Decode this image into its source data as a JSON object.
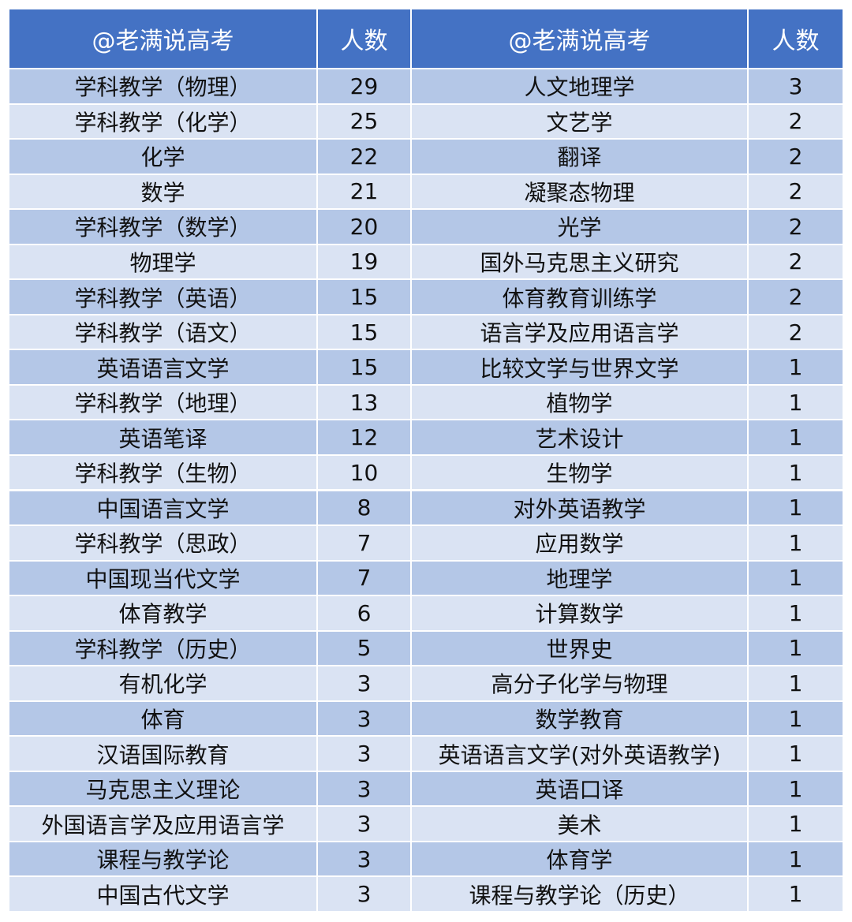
{
  "table": {
    "header": [
      "@老满说高考",
      "人数",
      "@老满说高考",
      "人数"
    ],
    "rows": [
      [
        "学科教学（物理）",
        29,
        "人文地理学",
        3
      ],
      [
        "学科教学（化学）",
        25,
        "文艺学",
        2
      ],
      [
        "化学",
        22,
        "翻译",
        2
      ],
      [
        "数学",
        21,
        "凝聚态物理",
        2
      ],
      [
        "学科教学（数学）",
        20,
        "光学",
        2
      ],
      [
        "物理学",
        19,
        "国外马克思主义研究",
        2
      ],
      [
        "学科教学（英语）",
        15,
        "体育教育训练学",
        2
      ],
      [
        "学科教学（语文）",
        15,
        "语言学及应用语言学",
        2
      ],
      [
        "英语语言文学",
        15,
        "比较文学与世界文学",
        1
      ],
      [
        "学科教学（地理）",
        13,
        "植物学",
        1
      ],
      [
        "英语笔译",
        12,
        "艺术设计",
        1
      ],
      [
        "学科教学（生物）",
        10,
        "生物学",
        1
      ],
      [
        "中国语言文学",
        8,
        "对外英语教学",
        1
      ],
      [
        "学科教学（思政）",
        7,
        "应用数学",
        1
      ],
      [
        "中国现当代文学",
        7,
        "地理学",
        1
      ],
      [
        "体育教学",
        6,
        "计算数学",
        1
      ],
      [
        "学科教学（历史）",
        5,
        "世界史",
        1
      ],
      [
        "有机化学",
        3,
        "高分子化学与物理",
        1
      ],
      [
        "体育",
        3,
        "数学教育",
        1
      ],
      [
        "汉语国际教育",
        3,
        "英语语言文学(对外英语教学)",
        1
      ],
      [
        "马克思主义理论",
        3,
        "英语口译",
        1
      ],
      [
        "外国语言学及应用语言学",
        3,
        "美术",
        1
      ],
      [
        "课程与教学论",
        3,
        "体育学",
        1
      ],
      [
        "中国古代文学",
        3,
        "课程与教学论（历史）",
        1
      ]
    ]
  }
}
